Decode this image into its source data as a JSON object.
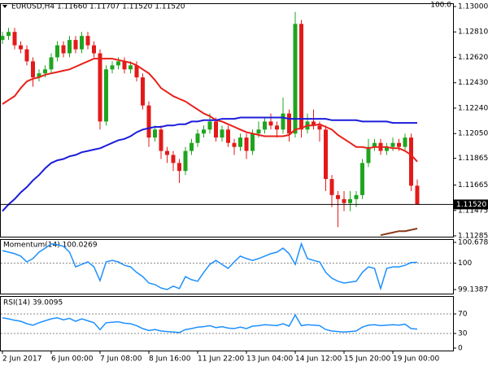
{
  "chart_data": [
    {
      "type": "candlestick",
      "title": "EURUSD,H4 1.11660 1.11707 1.11520 1.11520",
      "corner_label": "100.0",
      "categories": [
        "2 Jun 2017",
        null,
        null,
        null,
        null,
        null,
        null,
        null,
        "6 Jun 00:00",
        null,
        null,
        null,
        null,
        null,
        null,
        null,
        "7 Jun 08:00",
        null,
        null,
        null,
        null,
        null,
        null,
        null,
        "8 Jun 16:00",
        null,
        null,
        null,
        null,
        null,
        null,
        null,
        "11 Jun 22:00",
        null,
        null,
        null,
        null,
        null,
        null,
        null,
        "13 Jun 04:00",
        null,
        null,
        null,
        null,
        null,
        null,
        null,
        "14 Jun 12:00",
        null,
        null,
        null,
        null,
        null,
        null,
        null,
        "15 Jun 20:00",
        null,
        null,
        null,
        null,
        null,
        null,
        null,
        "19 Jun 00:00",
        null,
        null,
        null,
        null
      ],
      "open": [
        1.1275,
        1.1278,
        1.1281,
        1.1271,
        1.1268,
        1.1259,
        1.1247,
        1.125,
        1.1253,
        1.1262,
        1.1271,
        1.1265,
        1.1275,
        1.1268,
        1.1278,
        1.1271,
        1.1265,
        1.1214,
        1.1253,
        1.1256,
        1.1259,
        1.1253,
        1.1256,
        1.1247,
        1.1226,
        1.1202,
        1.1208,
        1.1192,
        1.1189,
        1.1183,
        1.1177,
        1.1192,
        1.1198,
        1.1205,
        1.1208,
        1.1214,
        1.1202,
        1.1208,
        1.1198,
        1.1195,
        1.1202,
        1.1192,
        1.1205,
        1.1208,
        1.1214,
        1.1211,
        1.1208,
        1.122,
        1.1205,
        1.1287,
        1.1208,
        1.1214,
        1.1211,
        1.1208,
        1.1171,
        1.1159,
        1.1156,
        1.1153,
        1.1156,
        1.1159,
        1.1183,
        1.1195,
        1.1198,
        1.1192,
        1.1195,
        1.1198,
        1.1195,
        1.1202,
        1.1166
      ],
      "high": [
        1.1281,
        1.1284,
        1.1284,
        1.1274,
        1.1271,
        1.1262,
        1.1253,
        1.1256,
        1.1265,
        1.1274,
        1.1274,
        1.1278,
        1.1278,
        1.1281,
        1.1281,
        1.1274,
        1.1268,
        1.1256,
        1.1259,
        1.1262,
        1.1262,
        1.1259,
        1.1259,
        1.125,
        1.1229,
        1.1211,
        1.1211,
        1.1195,
        1.1192,
        1.1186,
        1.1195,
        1.1201,
        1.1208,
        1.1211,
        1.122,
        1.1217,
        1.1211,
        1.1211,
        1.1201,
        1.1205,
        1.1205,
        1.1208,
        1.1214,
        1.1217,
        1.122,
        1.1214,
        1.1232,
        1.1223,
        1.1296,
        1.129,
        1.122,
        1.1223,
        1.1214,
        1.1211,
        1.1174,
        1.1162,
        1.1162,
        1.1162,
        1.1162,
        1.1186,
        1.1201,
        1.1201,
        1.1201,
        1.1198,
        1.1202,
        1.1201,
        1.1205,
        1.1205,
        1.11707
      ],
      "low": [
        1.1272,
        1.1275,
        1.1268,
        1.1265,
        1.1256,
        1.124,
        1.1244,
        1.1247,
        1.125,
        1.1259,
        1.1262,
        1.1262,
        1.1265,
        1.1265,
        1.1268,
        1.1262,
        1.1208,
        1.1211,
        1.125,
        1.1253,
        1.125,
        1.125,
        1.1244,
        1.1223,
        1.1195,
        1.1199,
        1.1186,
        1.1183,
        1.1177,
        1.1168,
        1.1174,
        1.1189,
        1.1195,
        1.1202,
        1.1205,
        1.1199,
        1.1199,
        1.1195,
        1.1189,
        1.1192,
        1.1186,
        1.1189,
        1.1202,
        1.1205,
        1.1208,
        1.1202,
        1.1205,
        1.1199,
        1.1202,
        1.1202,
        1.1205,
        1.1208,
        1.1199,
        1.1162,
        1.115,
        1.1135,
        1.1147,
        1.1147,
        1.115,
        1.1156,
        1.118,
        1.1192,
        1.1189,
        1.1189,
        1.1192,
        1.1192,
        1.1192,
        1.1162,
        1.1152
      ],
      "close": [
        1.1278,
        1.1281,
        1.1271,
        1.1268,
        1.1259,
        1.1247,
        1.125,
        1.1253,
        1.1262,
        1.1271,
        1.1265,
        1.1275,
        1.1268,
        1.1278,
        1.1271,
        1.1265,
        1.1214,
        1.1253,
        1.1256,
        1.1259,
        1.1253,
        1.1256,
        1.1247,
        1.1226,
        1.1202,
        1.1208,
        1.1192,
        1.1189,
        1.1183,
        1.1177,
        1.1192,
        1.1198,
        1.1205,
        1.1208,
        1.1214,
        1.1202,
        1.1208,
        1.1198,
        1.1195,
        1.1202,
        1.1192,
        1.1205,
        1.1208,
        1.1214,
        1.1211,
        1.1208,
        1.122,
        1.1205,
        1.1287,
        1.1208,
        1.1214,
        1.1211,
        1.1208,
        1.1171,
        1.1159,
        1.1156,
        1.1153,
        1.1156,
        1.1159,
        1.1183,
        1.1195,
        1.1198,
        1.1192,
        1.1195,
        1.1198,
        1.1195,
        1.1202,
        1.1166,
        1.1152
      ],
      "up_color": "#1fa51f",
      "down_color": "#e31a1a",
      "overlays": [
        {
          "color": "#e8201a",
          "values": [
            1.1227,
            1.123,
            1.1233,
            1.1239,
            1.1244,
            1.1246,
            1.1247,
            1.1249,
            1.125,
            1.1251,
            1.1252,
            1.1253,
            1.1255,
            1.1257,
            1.1259,
            1.1261,
            1.1261,
            1.1261,
            1.1261,
            1.126,
            1.1259,
            1.1258,
            1.1256,
            1.1253,
            1.125,
            1.1245,
            1.1239,
            1.1236,
            1.1233,
            1.1231,
            1.1229,
            1.1226,
            1.1223,
            1.122,
            1.1218,
            1.1215,
            1.1214,
            1.1212,
            1.121,
            1.1208,
            1.1206,
            1.1205,
            1.1204,
            1.1203,
            1.1203,
            1.1203,
            1.1203,
            1.1204,
            1.1208,
            1.1209,
            1.1211,
            1.1211,
            1.1212,
            1.121,
            1.1208,
            1.1204,
            1.1201,
            1.1198,
            1.1195,
            1.1195,
            1.1194,
            1.1195,
            1.1195,
            1.1195,
            1.1194,
            1.1194,
            1.1192,
            1.1189,
            1.1184
          ]
        },
        {
          "color": "#1c1cdc",
          "values": [
            1.1147,
            1.1152,
            1.1156,
            1.1161,
            1.1165,
            1.117,
            1.1174,
            1.1179,
            1.1183,
            1.1185,
            1.1186,
            1.1188,
            1.1189,
            1.1191,
            1.1192,
            1.1193,
            1.1194,
            1.1196,
            1.1198,
            1.12,
            1.1201,
            1.1203,
            1.1206,
            1.1208,
            1.1209,
            1.121,
            1.121,
            1.1211,
            1.1211,
            1.1212,
            1.1212,
            1.1214,
            1.1214,
            1.1215,
            1.1215,
            1.1215,
            1.1216,
            1.1216,
            1.1216,
            1.1217,
            1.1217,
            1.1217,
            1.1217,
            1.1217,
            1.1217,
            1.1217,
            1.1217,
            1.1216,
            1.1216,
            1.1216,
            1.1216,
            1.1216,
            1.1216,
            1.1216,
            1.1215,
            1.1215,
            1.1215,
            1.1215,
            1.1215,
            1.1214,
            1.1214,
            1.1214,
            1.1214,
            1.1214,
            1.1213,
            1.1213,
            1.1213,
            1.1213,
            1.1213
          ]
        },
        {
          "color": "#8b3a1a",
          "values": [
            null,
            null,
            null,
            null,
            null,
            null,
            null,
            null,
            null,
            null,
            null,
            null,
            null,
            null,
            null,
            null,
            null,
            null,
            null,
            null,
            null,
            null,
            null,
            null,
            null,
            null,
            null,
            null,
            null,
            null,
            null,
            null,
            null,
            null,
            null,
            null,
            null,
            null,
            null,
            null,
            null,
            null,
            null,
            null,
            null,
            null,
            null,
            null,
            null,
            null,
            null,
            null,
            null,
            null,
            null,
            null,
            null,
            null,
            null,
            null,
            null,
            null,
            1.1129,
            1.113,
            1.1131,
            1.1132,
            1.1132,
            1.1133,
            1.1134
          ]
        }
      ],
      "price_label": {
        "value": 1.1152,
        "label": "1.11520"
      },
      "ylim": [
        1.11285,
        1.13
      ],
      "yticks": [
        {
          "value": 1.13,
          "label": "1.13000"
        },
        {
          "value": 1.1281,
          "label": "1.12810"
        },
        {
          "value": 1.1262,
          "label": "1.12620"
        },
        {
          "value": 1.1243,
          "label": "1.12430"
        },
        {
          "value": 1.1224,
          "label": "1.12240"
        },
        {
          "value": 1.1205,
          "label": "1.12050"
        },
        {
          "value": 1.11865,
          "label": "1.11865"
        },
        {
          "value": 1.11665,
          "label": "1.11665"
        },
        {
          "value": 1.11475,
          "label": "1.11475"
        },
        {
          "value": 1.11285,
          "label": "1.11285"
        }
      ]
    },
    {
      "type": "line",
      "title": "Momentum(14) 100.0269",
      "color": "#1e90ff",
      "values": [
        100.41,
        100.36,
        100.31,
        100.23,
        100.04,
        100.15,
        100.36,
        100.49,
        100.63,
        100.6,
        100.55,
        100.36,
        99.88,
        99.96,
        100.04,
        99.88,
        99.43,
        100.04,
        100.09,
        100.04,
        99.93,
        99.88,
        99.7,
        99.56,
        99.35,
        99.3,
        99.19,
        99.14,
        99.25,
        99.17,
        99.56,
        99.46,
        99.41,
        99.7,
        99.96,
        100.09,
        99.96,
        99.83,
        100.04,
        100.23,
        100.15,
        100.09,
        100.15,
        100.23,
        100.31,
        100.36,
        100.49,
        100.31,
        99.96,
        100.63,
        100.15,
        100.09,
        100.04,
        99.7,
        99.51,
        99.41,
        99.35,
        99.38,
        99.41,
        99.7,
        99.88,
        99.83,
        99.17,
        99.83,
        99.88,
        99.88,
        99.93,
        100.02,
        100.0269
      ],
      "ylim": [
        99.1387,
        100.6783
      ],
      "yticks": [
        100.6783,
        100,
        99.1387
      ]
    },
    {
      "type": "line",
      "title": "RSI(14) 39.0095",
      "color": "#1e90ff",
      "values": [
        62,
        60,
        57,
        55,
        50,
        47,
        52,
        56,
        60,
        62,
        58,
        61,
        55,
        60,
        56,
        52,
        38,
        52,
        53,
        54,
        51,
        50,
        46,
        40,
        36,
        38,
        35,
        34,
        33,
        32,
        38,
        40,
        43,
        44,
        46,
        42,
        44,
        41,
        40,
        43,
        40,
        45,
        46,
        48,
        47,
        46,
        50,
        45,
        68,
        46,
        48,
        47,
        46,
        38,
        35,
        34,
        33,
        34,
        35,
        43,
        47,
        48,
        46,
        47,
        48,
        47,
        49,
        40,
        39.0095
      ],
      "ylim": [
        0,
        100
      ],
      "yticks": [
        70,
        30,
        0
      ]
    }
  ]
}
